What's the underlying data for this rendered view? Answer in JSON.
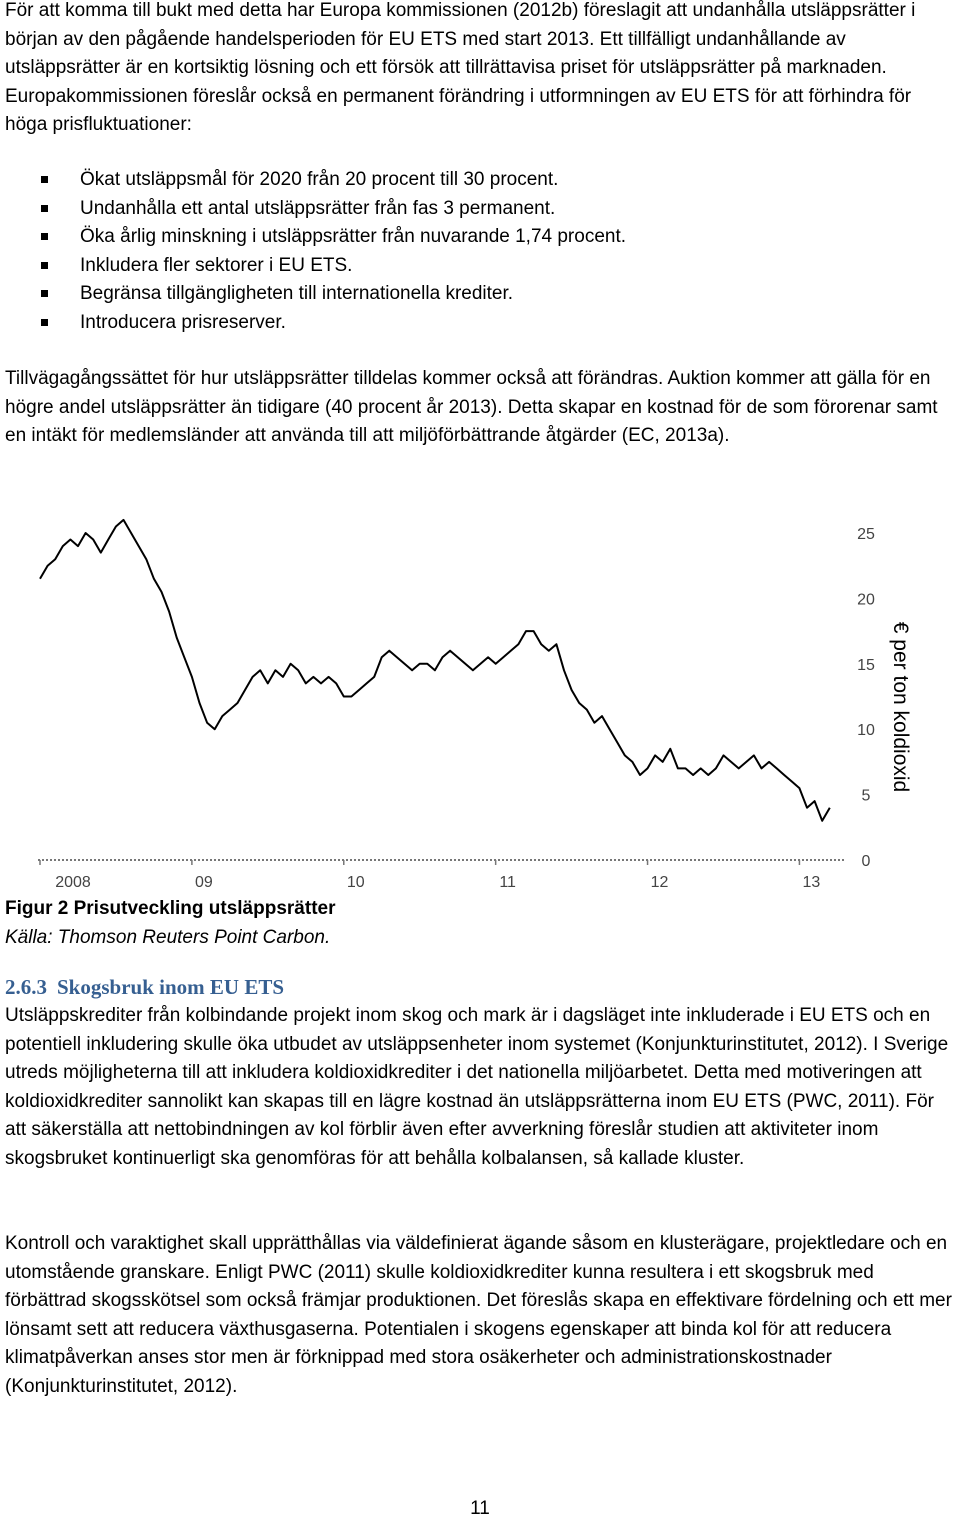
{
  "paragraphs": {
    "p1": "För att komma till bukt med detta har Europa kommissionen (2012b) föreslagit att undanhålla utsläppsrätter i början av den pågående handelsperioden för EU ETS med start 2013. Ett tillfälligt undanhållande av utsläppsrätter är en kortsiktig lösning och ett försök att tillrättavisa priset för utsläppsrätter på marknaden. Europakommissionen föreslår också en permanent förändring i utformningen av EU ETS för att förhindra för höga prisfluktuationer:",
    "p2": "Tillvägagångssättet för hur utsläppsrätter tilldelas kommer också att förändras. Auktion kommer att gälla för en högre andel utsläppsrätter än tidigare (40 procent år 2013). Detta skapar en kostnad för de som förorenar samt en intäkt för medlemsländer att använda till att miljöförbättrande åtgärder (EC, 2013a).",
    "p3": "Utsläppskrediter från kolbindande projekt inom skog och mark är i dagsläget inte inkluderade i EU ETS och en potentiell inkludering skulle öka utbudet av utsläppsenheter inom systemet (Konjunkturinstitutet, 2012). I Sverige utreds möjligheterna till att inkludera koldioxidkrediter i det nationella miljöarbetet. Detta med motiveringen att koldioxidkrediter sannolikt kan skapas till en lägre kostnad än utsläppsrätterna inom EU ETS (PWC, 2011). För att säkerställa att nettobindningen av kol förblir även efter avverkning föreslår studien att aktiviteter inom skogsbruket kontinuerligt ska genomföras för att behålla kolbalansen, så kallade kluster.",
    "p4": "Kontroll och varaktighet skall upprätthållas via väldefinierat ägande såsom en klusterägare, projektledare och en utomstående granskare. Enligt PWC (2011) skulle koldioxidkrediter kunna resultera i ett skogsbruk med förbättrad skogsskötsel som också främjar produktionen. Det föreslås skapa en effektivare fördelning och ett mer lönsamt sett att reducera växthusgaserna. Potentialen i skogens egenskaper att binda kol för att reducera klimatpåverkan anses stor men är förknippad med stora osäkerheter och administrationskostnader (Konjunkturinstitutet, 2012)."
  },
  "bullets": [
    "Ökat utsläppsmål för 2020 från 20 procent till 30 procent.",
    "Undanhålla ett antal utsläppsrätter från fas 3 permanent.",
    "Öka årlig minskning i utsläppsrätter från nuvarande 1,74 procent.",
    "Inkludera fler sektorer i EU ETS.",
    "Begränsa tillgängligheten till internationella krediter.",
    "Introducera prisreserver."
  ],
  "figure": {
    "caption_title": "Figur 2 Prisutveckling utsläppsrätter",
    "caption_source": "Källa: Thomson Reuters Point Carbon."
  },
  "section": {
    "number": "2.6.3",
    "title": "Skogsbruk inom EU ETS"
  },
  "page_number": "11",
  "chart_data": {
    "type": "line",
    "title": "",
    "xlabel": "",
    "ylabel": "€ per ton koldioxid",
    "x_tick_labels": [
      "2008",
      "09",
      "10",
      "11",
      "12",
      "13"
    ],
    "x_ticks_year": [
      2008,
      2009,
      2010,
      2011,
      2012,
      2013
    ],
    "y_ticks": [
      0,
      5,
      10,
      15,
      20,
      25
    ],
    "ylim": [
      0,
      25
    ],
    "xlim": [
      2008,
      2013.3
    ],
    "line_color": "#000000",
    "grid": false,
    "series": [
      {
        "x": [
          2008.0,
          2008.05,
          2008.1,
          2008.15,
          2008.2,
          2008.25,
          2008.3,
          2008.35,
          2008.4,
          2008.45,
          2008.5,
          2008.55,
          2008.6,
          2008.65,
          2008.7,
          2008.75,
          2008.8,
          2008.85,
          2008.9,
          2008.95,
          2009.0,
          2009.05,
          2009.1,
          2009.15,
          2009.2,
          2009.25,
          2009.3,
          2009.35,
          2009.4,
          2009.45,
          2009.5,
          2009.55,
          2009.6,
          2009.65,
          2009.7,
          2009.75,
          2009.8,
          2009.85,
          2009.9,
          2009.95,
          2010.0,
          2010.05,
          2010.1,
          2010.15,
          2010.2,
          2010.25,
          2010.3,
          2010.35,
          2010.4,
          2010.45,
          2010.5,
          2010.55,
          2010.6,
          2010.65,
          2010.7,
          2010.75,
          2010.8,
          2010.85,
          2010.9,
          2010.95,
          2011.0,
          2011.05,
          2011.1,
          2011.15,
          2011.2,
          2011.25,
          2011.3,
          2011.35,
          2011.4,
          2011.45,
          2011.5,
          2011.55,
          2011.6,
          2011.65,
          2011.7,
          2011.75,
          2011.8,
          2011.85,
          2011.9,
          2011.95,
          2012.0,
          2012.05,
          2012.1,
          2012.15,
          2012.2,
          2012.25,
          2012.3,
          2012.35,
          2012.4,
          2012.45,
          2012.5,
          2012.55,
          2012.6,
          2012.65,
          2012.7,
          2012.75,
          2012.8,
          2012.85,
          2012.9,
          2012.95,
          2013.0,
          2013.05,
          2013.1,
          2013.15,
          2013.2
        ],
        "values": [
          21.5,
          22.5,
          23.0,
          24.0,
          24.5,
          24.0,
          25.0,
          24.5,
          23.5,
          24.5,
          25.5,
          26.0,
          25.0,
          24.0,
          23.0,
          21.5,
          20.5,
          19.0,
          17.0,
          15.5,
          14.0,
          12.0,
          10.5,
          10.0,
          11.0,
          11.5,
          12.0,
          13.0,
          14.0,
          14.5,
          13.5,
          14.5,
          14.0,
          15.0,
          14.5,
          13.5,
          14.0,
          13.5,
          14.0,
          13.5,
          12.5,
          12.5,
          13.0,
          13.5,
          14.0,
          15.5,
          16.0,
          15.5,
          15.0,
          14.5,
          15.0,
          15.0,
          14.5,
          15.5,
          16.0,
          15.5,
          15.0,
          14.5,
          15.0,
          15.5,
          15.0,
          15.5,
          16.0,
          16.5,
          17.5,
          17.5,
          16.5,
          16.0,
          16.5,
          14.5,
          13.0,
          12.0,
          11.5,
          10.5,
          11.0,
          10.0,
          9.0,
          8.0,
          7.5,
          6.5,
          7.0,
          8.0,
          7.5,
          8.5,
          7.0,
          7.0,
          6.5,
          7.0,
          6.5,
          7.0,
          8.0,
          7.5,
          7.0,
          7.5,
          8.0,
          7.0,
          7.5,
          7.0,
          6.5,
          6.0,
          5.5,
          4.0,
          4.5,
          3.0,
          4.0
        ]
      }
    ]
  }
}
